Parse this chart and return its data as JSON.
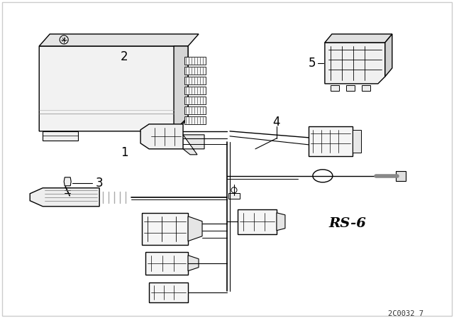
{
  "background_color": "#ffffff",
  "line_color": "#000000",
  "text_color": "#000000",
  "watermark": "2C0032 7",
  "rs_label": "RS-6",
  "figsize": [
    6.4,
    4.48
  ],
  "dpi": 100
}
